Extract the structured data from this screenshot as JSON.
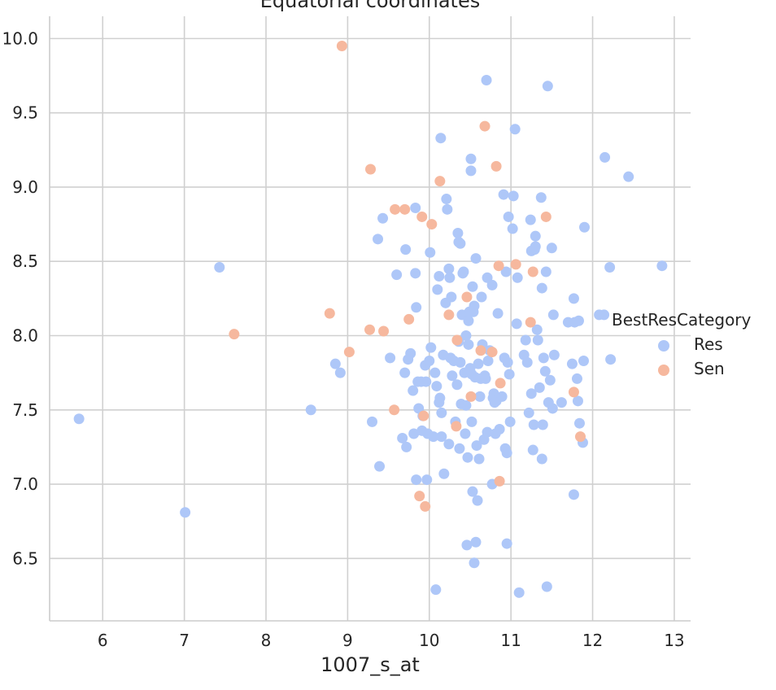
{
  "chart_data": {
    "type": "scatter",
    "title": "Equatorial coordinates",
    "xlabel": "1007_s_at",
    "ylabel": "",
    "xlim": [
      5.35,
      13.2
    ],
    "ylim": [
      6.08,
      10.15
    ],
    "xticks": [
      6,
      7,
      8,
      9,
      10,
      11,
      12,
      13
    ],
    "yticks": [
      6.5,
      7.0,
      7.5,
      8.0,
      8.5,
      9.0,
      9.5,
      10.0
    ],
    "ytick_labels": [
      "6.5",
      "7.0",
      "7.5",
      "8.0",
      "8.5",
      "9.0",
      "9.5",
      "10.0"
    ],
    "grid": true,
    "legend": {
      "title": "BestResCategory",
      "placement": "right",
      "entries": [
        "Res",
        "Sen"
      ]
    },
    "colors": {
      "Res": "#aec7f8",
      "Sen": "#f6b89e"
    },
    "series": [
      {
        "name": "Res",
        "color": "#aec7f8",
        "points": [
          [
            5.71,
            7.44
          ],
          [
            7.01,
            6.81
          ],
          [
            7.43,
            8.46
          ],
          [
            8.55,
            7.5
          ],
          [
            8.85,
            7.81
          ],
          [
            8.91,
            7.75
          ],
          [
            9.3,
            7.42
          ],
          [
            9.37,
            8.65
          ],
          [
            9.39,
            7.12
          ],
          [
            9.43,
            8.79
          ],
          [
            9.52,
            7.85
          ],
          [
            9.6,
            8.41
          ],
          [
            9.67,
            7.31
          ],
          [
            9.7,
            7.75
          ],
          [
            9.71,
            8.58
          ],
          [
            9.72,
            7.25
          ],
          [
            9.74,
            7.84
          ],
          [
            9.77,
            7.88
          ],
          [
            9.8,
            7.63
          ],
          [
            9.81,
            7.34
          ],
          [
            9.83,
            8.86
          ],
          [
            9.83,
            8.42
          ],
          [
            9.84,
            8.19
          ],
          [
            9.84,
            7.03
          ],
          [
            9.86,
            7.69
          ],
          [
            9.87,
            7.51
          ],
          [
            9.9,
            7.69
          ],
          [
            9.91,
            7.36
          ],
          [
            9.92,
            7.46
          ],
          [
            9.95,
            7.8
          ],
          [
            9.96,
            7.69
          ],
          [
            9.97,
            7.03
          ],
          [
            9.98,
            7.34
          ],
          [
            10.0,
            7.83
          ],
          [
            10.01,
            8.56
          ],
          [
            10.02,
            7.92
          ],
          [
            10.05,
            7.32
          ],
          [
            10.07,
            7.75
          ],
          [
            10.08,
            6.29
          ],
          [
            10.09,
            7.66
          ],
          [
            10.1,
            8.31
          ],
          [
            10.12,
            8.4
          ],
          [
            10.12,
            7.55
          ],
          [
            10.13,
            7.58
          ],
          [
            10.14,
            9.33
          ],
          [
            10.15,
            7.48
          ],
          [
            10.15,
            7.32
          ],
          [
            10.17,
            7.87
          ],
          [
            10.18,
            7.07
          ],
          [
            10.2,
            8.22
          ],
          [
            10.21,
            8.92
          ],
          [
            10.22,
            8.85
          ],
          [
            10.24,
            7.27
          ],
          [
            10.24,
            8.45
          ],
          [
            10.25,
            8.39
          ],
          [
            10.26,
            7.85
          ],
          [
            10.27,
            8.26
          ],
          [
            10.28,
            7.73
          ],
          [
            10.3,
            7.83
          ],
          [
            10.32,
            7.42
          ],
          [
            10.34,
            7.67
          ],
          [
            10.35,
            8.69
          ],
          [
            10.36,
            8.63
          ],
          [
            10.36,
            7.96
          ],
          [
            10.37,
            7.24
          ],
          [
            10.38,
            8.62
          ],
          [
            10.38,
            7.82
          ],
          [
            10.39,
            7.54
          ],
          [
            10.4,
            8.14
          ],
          [
            10.41,
            8.42
          ],
          [
            10.42,
            8.43
          ],
          [
            10.43,
            7.75
          ],
          [
            10.44,
            7.34
          ],
          [
            10.45,
            7.53
          ],
          [
            10.45,
            8.0
          ],
          [
            10.46,
            6.59
          ],
          [
            10.47,
            7.18
          ],
          [
            10.48,
            7.94
          ],
          [
            10.48,
            8.1
          ],
          [
            10.49,
            8.16
          ],
          [
            10.5,
            7.78
          ],
          [
            10.51,
            9.19
          ],
          [
            10.51,
            9.11
          ],
          [
            10.52,
            7.42
          ],
          [
            10.52,
            7.74
          ],
          [
            10.53,
            6.95
          ],
          [
            10.53,
            8.33
          ],
          [
            10.54,
            8.16
          ],
          [
            10.55,
            6.47
          ],
          [
            10.55,
            8.2
          ],
          [
            10.56,
            7.72
          ],
          [
            10.57,
            6.61
          ],
          [
            10.57,
            8.52
          ],
          [
            10.58,
            7.26
          ],
          [
            10.59,
            6.89
          ],
          [
            10.6,
            7.81
          ],
          [
            10.61,
            7.17
          ],
          [
            10.62,
            7.59
          ],
          [
            10.63,
            7.71
          ],
          [
            10.64,
            8.26
          ],
          [
            10.65,
            7.94
          ],
          [
            10.67,
            7.3
          ],
          [
            10.68,
            7.73
          ],
          [
            10.69,
            7.71
          ],
          [
            10.7,
            9.72
          ],
          [
            10.71,
            8.39
          ],
          [
            10.71,
            7.35
          ],
          [
            10.72,
            7.83
          ],
          [
            10.74,
            7.9
          ],
          [
            10.77,
            7.0
          ],
          [
            10.77,
            8.34
          ],
          [
            10.78,
            7.58
          ],
          [
            10.79,
            7.61
          ],
          [
            10.8,
            7.55
          ],
          [
            10.81,
            7.34
          ],
          [
            10.82,
            7.56
          ],
          [
            10.84,
            8.15
          ],
          [
            10.86,
            7.37
          ],
          [
            10.89,
            7.59
          ],
          [
            10.91,
            8.95
          ],
          [
            10.92,
            7.85
          ],
          [
            10.93,
            7.24
          ],
          [
            10.94,
            8.43
          ],
          [
            10.95,
            7.21
          ],
          [
            10.95,
            6.6
          ],
          [
            10.96,
            7.82
          ],
          [
            10.97,
            8.8
          ],
          [
            10.98,
            7.74
          ],
          [
            10.99,
            7.42
          ],
          [
            11.02,
            8.72
          ],
          [
            11.03,
            8.94
          ],
          [
            11.05,
            9.39
          ],
          [
            11.07,
            8.08
          ],
          [
            11.08,
            8.39
          ],
          [
            11.1,
            6.27
          ],
          [
            11.16,
            7.87
          ],
          [
            11.18,
            7.97
          ],
          [
            11.2,
            7.82
          ],
          [
            11.22,
            7.48
          ],
          [
            11.24,
            8.78
          ],
          [
            11.25,
            8.57
          ],
          [
            11.25,
            7.61
          ],
          [
            11.27,
            7.23
          ],
          [
            11.28,
            7.4
          ],
          [
            11.29,
            8.58
          ],
          [
            11.3,
            8.6
          ],
          [
            11.3,
            8.67
          ],
          [
            11.32,
            8.04
          ],
          [
            11.33,
            7.97
          ],
          [
            11.35,
            7.65
          ],
          [
            11.37,
            8.93
          ],
          [
            11.38,
            8.32
          ],
          [
            11.38,
            7.17
          ],
          [
            11.39,
            7.4
          ],
          [
            11.4,
            7.85
          ],
          [
            11.42,
            7.76
          ],
          [
            11.43,
            8.43
          ],
          [
            11.44,
            6.31
          ],
          [
            11.45,
            9.68
          ],
          [
            11.46,
            7.55
          ],
          [
            11.48,
            7.7
          ],
          [
            11.5,
            8.59
          ],
          [
            11.51,
            7.51
          ],
          [
            11.52,
            8.14
          ],
          [
            11.53,
            7.87
          ],
          [
            11.62,
            7.55
          ],
          [
            11.7,
            8.09
          ],
          [
            11.75,
            7.81
          ],
          [
            11.77,
            8.25
          ],
          [
            11.77,
            6.93
          ],
          [
            11.78,
            8.09
          ],
          [
            11.81,
            7.71
          ],
          [
            11.82,
            7.56
          ],
          [
            11.83,
            8.1
          ],
          [
            11.84,
            7.41
          ],
          [
            11.88,
            7.28
          ],
          [
            11.89,
            7.83
          ],
          [
            11.9,
            8.73
          ],
          [
            12.08,
            8.14
          ],
          [
            12.14,
            8.14
          ],
          [
            12.15,
            9.2
          ],
          [
            12.21,
            8.46
          ],
          [
            12.22,
            7.84
          ],
          [
            12.44,
            9.07
          ],
          [
            12.85,
            8.47
          ]
        ]
      },
      {
        "name": "Sen",
        "color": "#f6b89e",
        "points": [
          [
            7.61,
            8.01
          ],
          [
            8.78,
            8.15
          ],
          [
            8.93,
            9.95
          ],
          [
            9.02,
            7.89
          ],
          [
            9.27,
            8.04
          ],
          [
            9.28,
            9.12
          ],
          [
            9.44,
            8.03
          ],
          [
            9.57,
            7.5
          ],
          [
            9.58,
            8.85
          ],
          [
            9.7,
            8.85
          ],
          [
            9.75,
            8.11
          ],
          [
            9.88,
            6.92
          ],
          [
            9.91,
            8.8
          ],
          [
            9.93,
            7.46
          ],
          [
            9.95,
            6.85
          ],
          [
            10.03,
            8.75
          ],
          [
            10.13,
            9.04
          ],
          [
            10.24,
            8.14
          ],
          [
            10.33,
            7.39
          ],
          [
            10.34,
            7.97
          ],
          [
            10.46,
            8.26
          ],
          [
            10.51,
            7.59
          ],
          [
            10.63,
            7.9
          ],
          [
            10.68,
            9.41
          ],
          [
            10.77,
            7.89
          ],
          [
            10.82,
            9.14
          ],
          [
            10.85,
            8.47
          ],
          [
            10.86,
            7.02
          ],
          [
            10.87,
            7.68
          ],
          [
            11.06,
            8.48
          ],
          [
            11.24,
            8.09
          ],
          [
            11.27,
            8.43
          ],
          [
            11.43,
            8.8
          ],
          [
            11.77,
            7.62
          ],
          [
            11.85,
            7.32
          ]
        ]
      }
    ]
  }
}
